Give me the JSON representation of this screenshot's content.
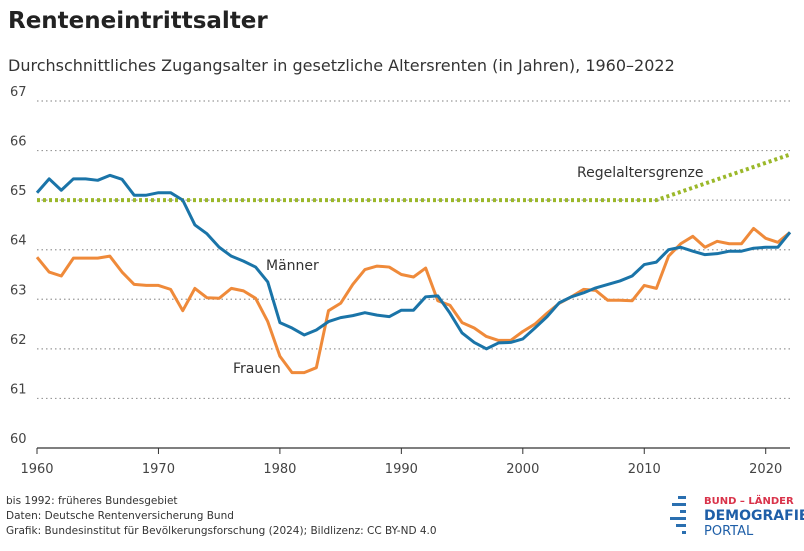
{
  "chart_data": {
    "type": "line",
    "title": "Renteneintrittsalter",
    "subtitle": "Durchschnittliches Zugangsalter in gesetzliche Altersrenten (in Jahren), 1960–2022",
    "x": [
      1960,
      1961,
      1962,
      1963,
      1964,
      1965,
      1966,
      1967,
      1968,
      1969,
      1970,
      1971,
      1972,
      1973,
      1974,
      1975,
      1976,
      1977,
      1978,
      1979,
      1980,
      1981,
      1982,
      1983,
      1984,
      1985,
      1986,
      1987,
      1988,
      1989,
      1990,
      1991,
      1992,
      1993,
      1994,
      1995,
      1996,
      1997,
      1998,
      1999,
      2000,
      2001,
      2002,
      2003,
      2004,
      2005,
      2006,
      2007,
      2008,
      2009,
      2010,
      2011,
      2012,
      2013,
      2014,
      2015,
      2016,
      2017,
      2018,
      2019,
      2020,
      2021,
      2022
    ],
    "series": [
      {
        "name": "Männer",
        "color": "#1a74a8",
        "dashed": false,
        "values": [
          65.15,
          65.43,
          65.2,
          65.43,
          65.43,
          65.4,
          65.5,
          65.42,
          65.1,
          65.1,
          65.15,
          65.15,
          65.0,
          64.5,
          64.32,
          64.05,
          63.87,
          63.77,
          63.65,
          63.35,
          62.53,
          62.42,
          62.28,
          62.38,
          62.55,
          62.63,
          62.67,
          62.73,
          62.68,
          62.65,
          62.78,
          62.78,
          63.05,
          63.07,
          62.72,
          62.32,
          62.13,
          62.0,
          62.12,
          62.13,
          62.2,
          62.42,
          62.65,
          62.93,
          63.05,
          63.13,
          63.23,
          63.3,
          63.37,
          63.47,
          63.7,
          63.75,
          64.0,
          64.05,
          63.97,
          63.9,
          63.92,
          63.97,
          63.97,
          64.03,
          64.05,
          64.05,
          64.35
        ]
      },
      {
        "name": "Frauen",
        "color": "#ef8a3a",
        "dashed": false,
        "values": [
          63.85,
          63.55,
          63.47,
          63.83,
          63.83,
          63.83,
          63.87,
          63.55,
          63.3,
          63.28,
          63.28,
          63.2,
          62.77,
          63.22,
          63.03,
          63.02,
          63.22,
          63.17,
          63.02,
          62.55,
          61.85,
          61.52,
          61.52,
          61.62,
          62.77,
          62.92,
          63.3,
          63.6,
          63.67,
          63.65,
          63.5,
          63.45,
          63.63,
          62.97,
          62.88,
          62.53,
          62.42,
          62.25,
          62.17,
          62.17,
          62.35,
          62.5,
          62.72,
          62.92,
          63.05,
          63.2,
          63.18,
          62.98,
          62.98,
          62.97,
          63.28,
          63.22,
          63.87,
          64.12,
          64.27,
          64.05,
          64.17,
          64.12,
          64.12,
          64.43,
          64.23,
          64.15,
          64.35
        ]
      },
      {
        "name": "Regelaltersgrenze",
        "color": "#9bb82a",
        "dashed": true,
        "x": [
          1960,
          2011,
          2022
        ],
        "values": [
          65,
          65,
          65.92
        ]
      }
    ],
    "xlim": [
      1960,
      2022
    ],
    "xticks": [
      1960,
      1970,
      1980,
      1990,
      2000,
      2010,
      2020
    ],
    "ylim": [
      60,
      67
    ],
    "yticks": [
      60,
      61,
      62,
      63,
      64,
      65,
      66,
      67
    ],
    "grid": true,
    "notes": [
      "bis 1992: früheres Bundesgebiet",
      "Daten: Deutsche Rentenversicherung Bund",
      "Grafik: Bundesinstitut für Bevölkerungsforschung (2024); Bildlizenz: CC BY-ND 4.0"
    ],
    "logo": [
      "BUND – LÄNDER",
      "DEMOGRAFIE",
      "PORTAL"
    ]
  }
}
